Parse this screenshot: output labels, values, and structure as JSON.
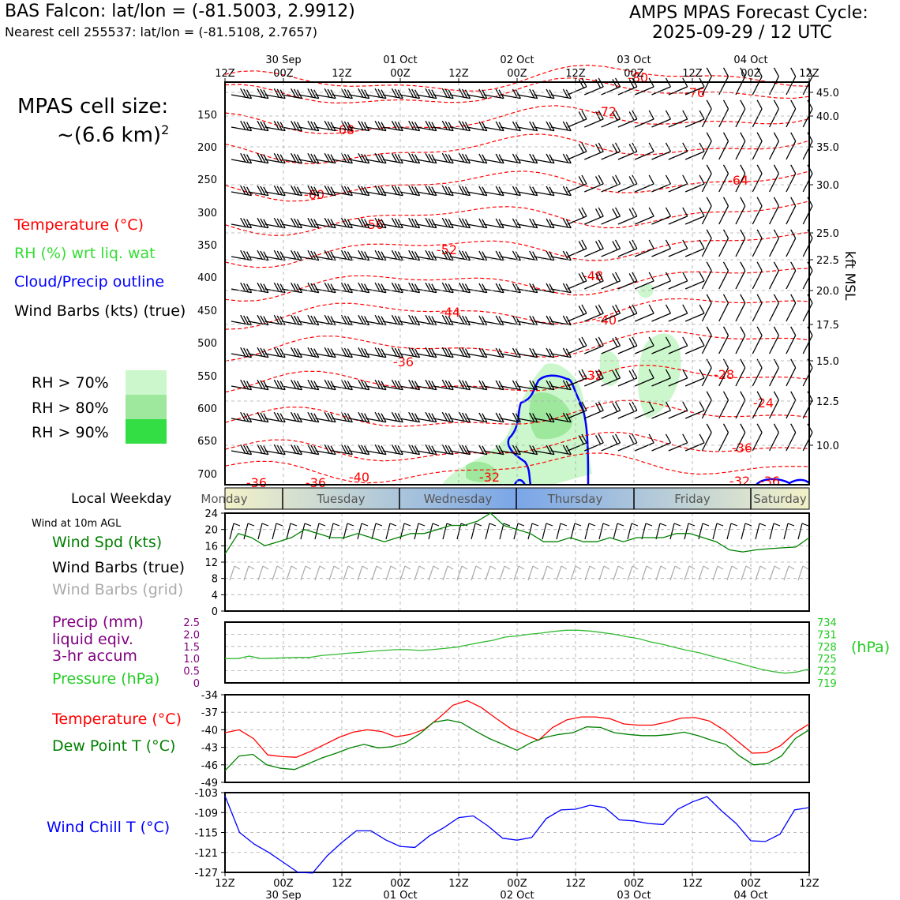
{
  "header": {
    "station_title": "BAS Falcon: lat/lon = (-81.5003, 2.9912)",
    "nearest_cell": "Nearest cell 255537: lat/lon = (-81.5108, 2.7657)",
    "cycle_title": "AMPS MPAS Forecast Cycle:",
    "cycle_time": "2025-09-29 / 12 UTC"
  },
  "left_legend": {
    "cell_size_label": "MPAS cell size:",
    "cell_size_value": "~(6.6 km)",
    "cell_size_exp": "2",
    "temperature": "Temperature (°C)",
    "rh": "RH (%) wrt liq. wat",
    "cloud": "Cloud/Precip outline",
    "wind_barbs": "Wind Barbs (kts) (true)",
    "rh_levels": [
      "RH > 70%",
      "RH > 80%",
      "RH > 90%"
    ],
    "rh_colors": [
      "#ccf7cc",
      "#9ee89e",
      "#33dd44"
    ]
  },
  "time_axis": {
    "hour_labels": [
      "12Z",
      "00Z",
      "12Z",
      "00Z",
      "12Z",
      "00Z",
      "12Z",
      "00Z",
      "12Z",
      "00Z",
      "12Z"
    ],
    "date_labels": [
      "30 Sep",
      "01 Oct",
      "02 Oct",
      "03 Oct",
      "04 Oct"
    ]
  },
  "weekday_bar": {
    "label": "Local Weekday",
    "days": [
      "Monday",
      "Tuesday",
      "Wednesday",
      "Thursday",
      "Friday",
      "Saturday"
    ]
  },
  "panels": {
    "wind_title": "Wind at 10m AGL",
    "wind_speed": "Wind Spd (kts)",
    "wind_barbs_true": "Wind Barbs (true)",
    "wind_barbs_grid": "Wind Barbs (grid)",
    "precip_line1": "Precip (mm)",
    "precip_line2": "liquid eqiv.",
    "precip_line3": "3-hr accum",
    "pressure": "Pressure (hPa)",
    "pressure_unit": "(hPa)",
    "temperature": "Temperature (°C)",
    "dew_point": "Dew Point T (°C)",
    "wind_chill": "Wind Chill T (°C)"
  },
  "chart_data": [
    {
      "type": "contour",
      "name": "cross-section",
      "y_left_ticks": [
        "150",
        "200",
        "250",
        "300",
        "350",
        "400",
        "450",
        "500",
        "550",
        "600",
        "650",
        "700"
      ],
      "y_right_ticks": [
        "45.0",
        "40.0",
        "35.0",
        "30.0",
        "25.0",
        "22.5",
        "20.0",
        "17.5",
        "15.0",
        "12.5",
        "10.0"
      ],
      "y_right_label": "kft MSL",
      "temperature_contour_labels": [
        "-80",
        "-76",
        "-72",
        "-68",
        "-64",
        "-60",
        "-56",
        "-52",
        "-48",
        "-44",
        "-40",
        "-36",
        "-32",
        "-28",
        "-24",
        "-36",
        "-32",
        "-40",
        "-36",
        "-36",
        "-32",
        "-36"
      ]
    },
    {
      "type": "line",
      "name": "wind-10m",
      "yticks": [
        "0",
        "4",
        "8",
        "12",
        "16",
        "20",
        "24"
      ],
      "ylim": [
        0,
        24
      ],
      "series": [
        {
          "name": "Wind Spd (kts)",
          "color": "#008000",
          "values": [
            14,
            19,
            18,
            16,
            17,
            18,
            20,
            19,
            18,
            18,
            19,
            18,
            17,
            18,
            19,
            19,
            20,
            21,
            21,
            22,
            24,
            21,
            20,
            19,
            17,
            17,
            18,
            17,
            17,
            18,
            17,
            18,
            18,
            18,
            19,
            19,
            18,
            17,
            15,
            14.5,
            15,
            15.3,
            15.5,
            15.7,
            18
          ]
        }
      ]
    },
    {
      "type": "line",
      "name": "precip-pressure",
      "yticks_left": [
        "0",
        "0.5",
        "1.0",
        "1.5",
        "2.0",
        "2.5"
      ],
      "yticks_right": [
        "719",
        "722",
        "725",
        "728",
        "731",
        "734"
      ],
      "ylim_right": [
        719,
        734
      ],
      "series": [
        {
          "name": "Pressure (hPa)",
          "color": "#33bb33",
          "values": [
            725,
            725,
            725.6,
            725,
            725.1,
            725.2,
            725.3,
            725.3,
            725.8,
            726,
            726.3,
            726.5,
            726.8,
            727,
            727.2,
            727.2,
            727,
            727.2,
            727.5,
            727.8,
            728.4,
            729,
            729.5,
            730.3,
            730.6,
            731,
            731.3,
            731.7,
            732,
            732,
            731.8,
            731.4,
            731,
            730.4,
            729.9,
            729.1,
            728.5,
            727.7,
            727,
            726.4,
            725.6,
            724.8,
            724,
            723.2,
            722.4,
            721.8,
            721.4,
            721.7,
            722.4
          ]
        }
      ]
    },
    {
      "type": "line",
      "name": "temp-dewpoint",
      "yticks": [
        "-34",
        "-37",
        "-40",
        "-43",
        "-46",
        "-49"
      ],
      "ylim": [
        -49,
        -34
      ],
      "series": [
        {
          "name": "Temperature (°C)",
          "color": "#ff0000",
          "values": [
            -40.5,
            -40,
            -41.5,
            -44.3,
            -44.6,
            -44.7,
            -43.7,
            -42.5,
            -41.3,
            -40.4,
            -40,
            -40.3,
            -41.2,
            -40.8,
            -39.9,
            -38,
            -35.8,
            -35,
            -36.2,
            -38,
            -39.7,
            -40.8,
            -41.8,
            -39.6,
            -38.3,
            -37.8,
            -37.8,
            -38.1,
            -39,
            -39.2,
            -39.2,
            -38.7,
            -38,
            -37.9,
            -38.5,
            -40,
            -42,
            -44,
            -43.9,
            -42.7,
            -40.5,
            -39
          ]
        },
        {
          "name": "Dew Point T (°C)",
          "color": "#008000",
          "values": [
            -47,
            -44.5,
            -44.2,
            -46,
            -46.6,
            -46.8,
            -45.8,
            -44.8,
            -44,
            -43.1,
            -42.5,
            -43.1,
            -42.9,
            -42.2,
            -40.7,
            -38.7,
            -38.3,
            -38.8,
            -40.2,
            -41.5,
            -42.5,
            -43.5,
            -42.2,
            -41.3,
            -40.8,
            -40.5,
            -39.5,
            -39.6,
            -40.5,
            -40.8,
            -41,
            -41,
            -40.8,
            -40.4,
            -41,
            -41.8,
            -42.5,
            -44.5,
            -46,
            -45.8,
            -44.5,
            -41.5,
            -40
          ]
        }
      ]
    },
    {
      "type": "line",
      "name": "wind-chill",
      "yticks": [
        "-103",
        "-109",
        "-115",
        "-121",
        "-127"
      ],
      "ylim": [
        -127,
        -103
      ],
      "series": [
        {
          "name": "Wind Chill T (°C)",
          "color": "#0000ff",
          "values": [
            -104,
            -115,
            -118.5,
            -121,
            -124,
            -127,
            -127.2,
            -122,
            -118,
            -114.5,
            -114.5,
            -117.2,
            -119.2,
            -119.5,
            -116,
            -113.5,
            -110.5,
            -110,
            -113,
            -116.7,
            -117.3,
            -116.5,
            -110.8,
            -108.2,
            -108,
            -106.8,
            -107.5,
            -111.2,
            -111.5,
            -112.3,
            -112.6,
            -108,
            -105.8,
            -104.2,
            -108.5,
            -112.3,
            -117.5,
            -117.7,
            -115.5,
            -108.2,
            -107.5
          ]
        }
      ]
    }
  ]
}
